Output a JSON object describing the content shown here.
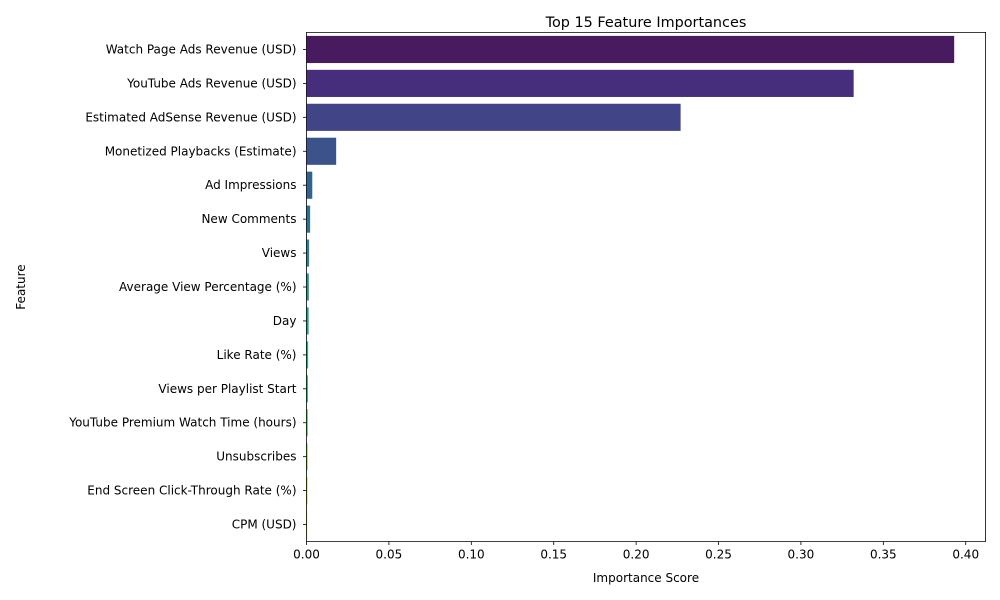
{
  "chart_data": {
    "type": "bar",
    "orientation": "horizontal",
    "title": "Top 15 Feature Importances",
    "xlabel": "Importance Score",
    "ylabel": "Feature",
    "xlim": [
      0,
      0.412
    ],
    "xticks": [
      0.0,
      0.05,
      0.1,
      0.15,
      0.2,
      0.25,
      0.3,
      0.35,
      0.4
    ],
    "xtick_labels": [
      "0.00",
      "0.05",
      "0.10",
      "0.15",
      "0.20",
      "0.25",
      "0.30",
      "0.35",
      "0.40"
    ],
    "categories": [
      "Watch Page Ads Revenue (USD)",
      "YouTube Ads Revenue (USD)",
      "Estimated AdSense Revenue (USD)",
      "Monetized Playbacks (Estimate)",
      "Ad Impressions",
      "New Comments",
      "Views",
      "Average View Percentage (%)",
      "Day",
      "Like Rate (%)",
      "Views per Playlist Start",
      "YouTube Premium Watch Time (hours)",
      "Unsubscribes",
      "End Screen Click-Through Rate (%)",
      "CPM (USD)"
    ],
    "values": [
      0.393,
      0.332,
      0.227,
      0.018,
      0.0035,
      0.0022,
      0.0016,
      0.0014,
      0.0013,
      0.001,
      0.0009,
      0.0008,
      0.0007,
      0.0006,
      0.0004
    ],
    "colors": [
      "#481a5f",
      "#472e7c",
      "#414487",
      "#3b528b",
      "#33638d",
      "#2c728e",
      "#26828e",
      "#21918c",
      "#1fa088",
      "#28ae80",
      "#3fbc73",
      "#5ec962",
      "#84d44b",
      "#addc30",
      "#d8e219"
    ],
    "grid": false,
    "legend": "none"
  }
}
